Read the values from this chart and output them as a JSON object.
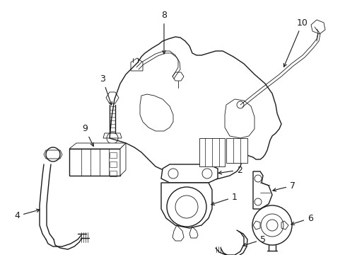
{
  "bg_color": "#ffffff",
  "line_color": "#1a1a1a",
  "fig_width": 4.89,
  "fig_height": 3.6,
  "dpi": 100,
  "label_fs": 9,
  "lw_main": 1.0,
  "lw_thin": 0.6
}
